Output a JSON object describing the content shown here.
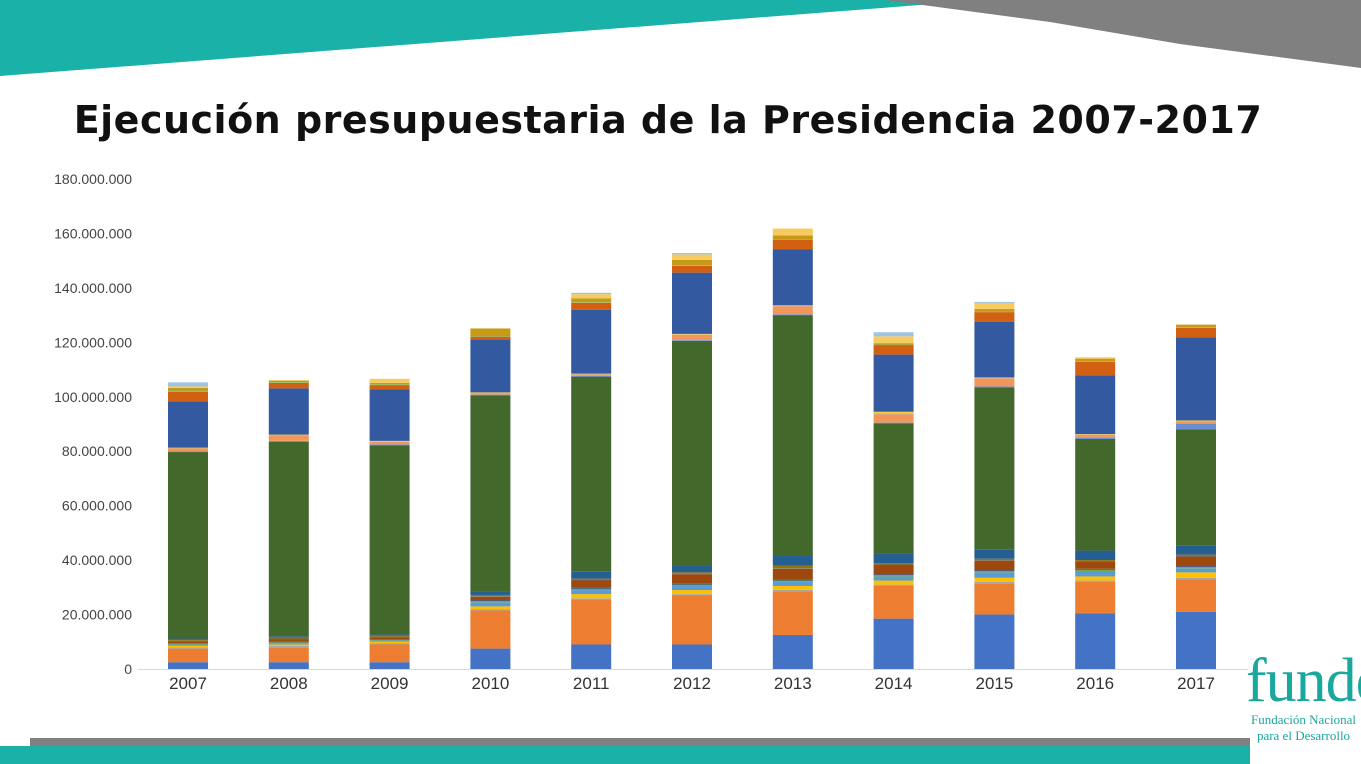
{
  "slide": {
    "title": "Ejecución presupuestaria de la Presidencia 2007-2017",
    "colors": {
      "teal": "#1ab2a8",
      "gray": "#808080"
    }
  },
  "logo": {
    "word": "funde",
    "line1": "Fundación Nacional",
    "line2": "para el Desarrollo"
  },
  "chart_data": {
    "type": "bar",
    "stacked": true,
    "categories": [
      "2007",
      "2008",
      "2009",
      "2010",
      "2011",
      "2012",
      "2013",
      "2014",
      "2015",
      "2016",
      "2017"
    ],
    "ylim": [
      0,
      180000000
    ],
    "yticks": [
      "0",
      "20.000.000",
      "40.000.000",
      "60.000.000",
      "80.000.000",
      "100.000.000",
      "120.000.000",
      "140.000.000",
      "160.000.000",
      "180.000.000"
    ],
    "grid": false,
    "legend": "none",
    "series": [
      {
        "color": "#4472c4",
        "values": [
          2500000,
          2500000,
          2500000,
          7500000,
          9000000,
          9000000,
          12500000,
          18500000,
          20000000,
          20500000,
          21000000
        ]
      },
      {
        "color": "#ed7d31",
        "values": [
          5000000,
          5500000,
          6500000,
          14000000,
          16500000,
          18000000,
          16000000,
          12000000,
          11500000,
          11500000,
          12000000
        ]
      },
      {
        "color": "#a5a5a5",
        "values": [
          500000,
          500000,
          500000,
          500000,
          500000,
          500000,
          500000,
          500000,
          500000,
          500000,
          500000
        ]
      },
      {
        "color": "#ffc000",
        "values": [
          500000,
          500000,
          500000,
          1000000,
          1500000,
          1500000,
          1500000,
          1500000,
          1500000,
          1500000,
          2000000
        ]
      },
      {
        "color": "#5b9bd5",
        "values": [
          500000,
          500000,
          500000,
          1500000,
          1500000,
          1500000,
          1500000,
          1500000,
          2000000,
          2000000,
          1500000
        ]
      },
      {
        "color": "#70ad47",
        "values": [
          300000,
          300000,
          300000,
          500000,
          500000,
          500000,
          500000,
          500000,
          500000,
          500000,
          500000
        ]
      },
      {
        "color": "#264478",
        "values": [
          200000,
          200000,
          200000,
          300000,
          300000,
          300000,
          300000,
          300000,
          300000,
          300000,
          300000
        ]
      },
      {
        "color": "#9e480e",
        "values": [
          700000,
          1000000,
          700000,
          1200000,
          2700000,
          3500000,
          4000000,
          3400000,
          3500000,
          2500000,
          3500000
        ]
      },
      {
        "color": "#636363",
        "values": [
          200000,
          200000,
          200000,
          200000,
          200000,
          200000,
          200000,
          200000,
          200000,
          200000,
          200000
        ]
      },
      {
        "color": "#997300",
        "values": [
          300000,
          300000,
          300000,
          500000,
          500000,
          500000,
          1000000,
          500000,
          500000,
          500000,
          500000
        ]
      },
      {
        "color": "#255e91",
        "values": [
          500000,
          500000,
          500000,
          1300000,
          2700000,
          2500000,
          3500000,
          3500000,
          3500000,
          3500000,
          3500000
        ]
      },
      {
        "color": "#43682b",
        "values": [
          68500000,
          71500000,
          69500000,
          72000000,
          71500000,
          82500000,
          88500000,
          47800000,
          59500000,
          41000000,
          42500000
        ]
      },
      {
        "color": "#698ed0",
        "values": [
          300000,
          300000,
          300000,
          300000,
          300000,
          300000,
          300000,
          300000,
          300000,
          500000,
          2000000
        ]
      },
      {
        "color": "#f1975a",
        "values": [
          1000000,
          2000000,
          1000000,
          500000,
          500000,
          2000000,
          3000000,
          3000000,
          3000000,
          1000000,
          1000000
        ]
      },
      {
        "color": "#b7b7b7",
        "values": [
          200000,
          200000,
          200000,
          200000,
          200000,
          200000,
          200000,
          500000,
          200000,
          200000,
          200000
        ]
      },
      {
        "color": "#ffcd33",
        "values": [
          100000,
          100000,
          100000,
          100000,
          100000,
          100000,
          100000,
          500000,
          100000,
          100000,
          100000
        ]
      },
      {
        "color": "#335aa1",
        "values": [
          17000000,
          17000000,
          19000000,
          19500000,
          23500000,
          22500000,
          20500000,
          21000000,
          20500000,
          21500000,
          30500000
        ]
      },
      {
        "color": "#d26012",
        "values": [
          3500000,
          2000000,
          1500000,
          1000000,
          2500000,
          2500000,
          3500000,
          3500000,
          3500000,
          5000000,
          3500000
        ]
      },
      {
        "color": "#81bc61",
        "values": [
          500000,
          300000,
          300000,
          200000,
          200000,
          200000,
          200000,
          200000,
          200000,
          200000,
          200000
        ]
      },
      {
        "color": "#c69a16",
        "values": [
          1000000,
          500000,
          500000,
          2800000,
          1500000,
          2000000,
          1500000,
          500000,
          1000000,
          1000000,
          1000000
        ]
      },
      {
        "color": "#f8cb60",
        "values": [
          500000,
          300000,
          1500000,
          0,
          1500000,
          2000000,
          2500000,
          2500000,
          2000000,
          500000,
          0
        ]
      },
      {
        "color": "#9dc3e6",
        "values": [
          1500000,
          0,
          0,
          0,
          500000,
          500000,
          0,
          1500000,
          500000,
          0,
          0
        ]
      }
    ]
  }
}
